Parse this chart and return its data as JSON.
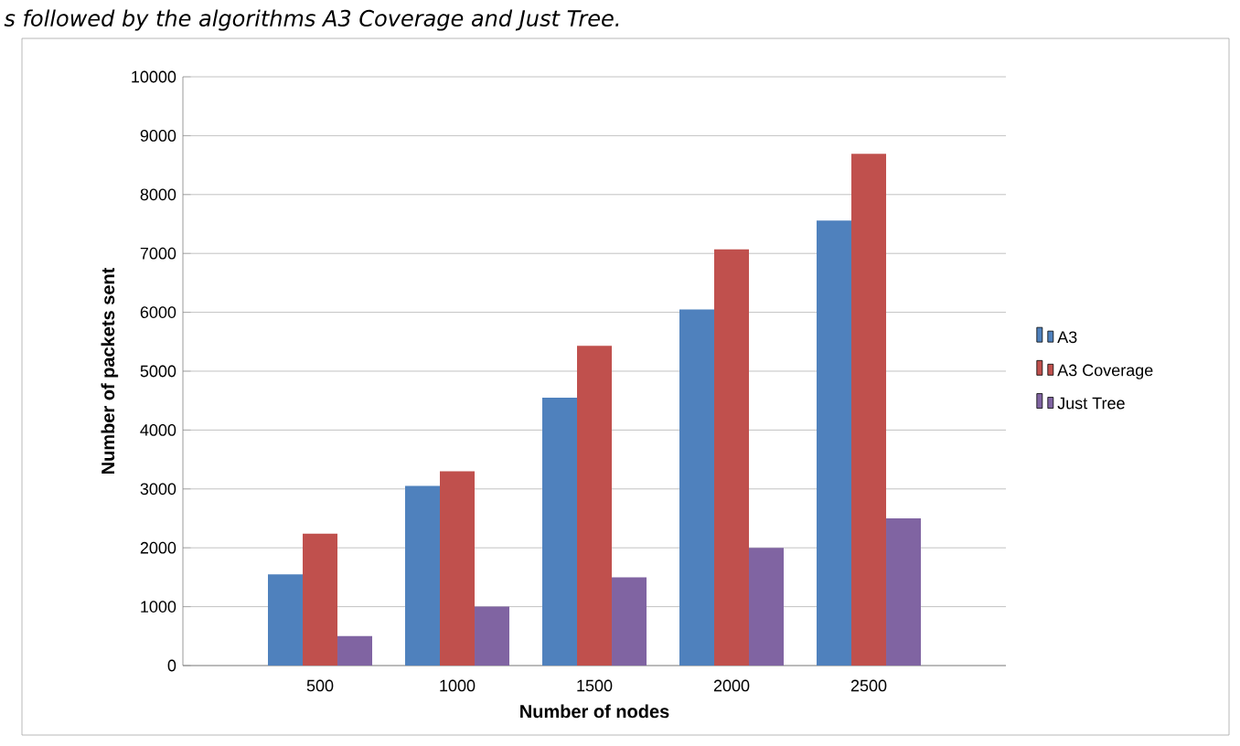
{
  "chart_data": {
    "type": "bar",
    "title": "s followed by the algorithms A3 Coverage and Just Tree.",
    "xlabel": "Number of nodes",
    "ylabel": "Number of packets sent",
    "categories": [
      "500",
      "1000",
      "1500",
      "2000",
      "2500"
    ],
    "series": [
      {
        "name": "A3",
        "color": "#4f81bd",
        "values": [
          1550,
          3050,
          4550,
          6050,
          7560
        ]
      },
      {
        "name": "A3 Coverage",
        "color": "#c0504d",
        "values": [
          2240,
          3300,
          5430,
          7070,
          8690
        ]
      },
      {
        "name": "Just Tree",
        "color": "#8064a2",
        "values": [
          500,
          1000,
          1500,
          2000,
          2500
        ]
      }
    ],
    "ylim": [
      0,
      10000
    ],
    "yticks": [
      0,
      1000,
      2000,
      3000,
      4000,
      5000,
      6000,
      7000,
      8000,
      9000,
      10000
    ],
    "grid": "y",
    "legend": "right"
  }
}
